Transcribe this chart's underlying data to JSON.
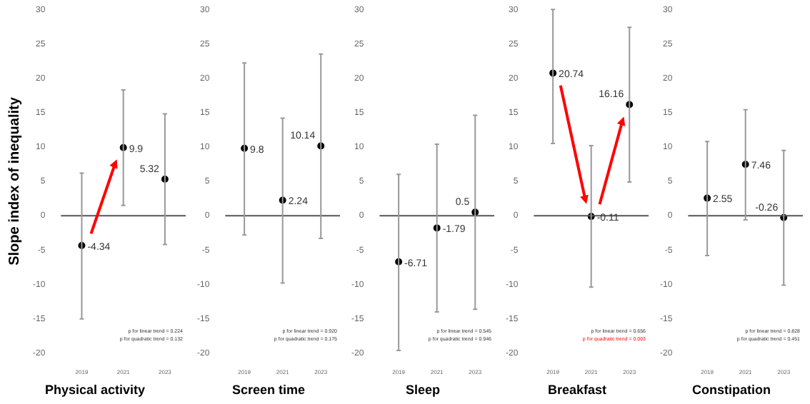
{
  "chart_data": [
    {
      "type": "scatter",
      "title": "Physical activity",
      "ylabel": "Slope index of inequality",
      "categories": [
        "2019",
        "2021",
        "2023"
      ],
      "values": [
        -4.34,
        9.9,
        5.32
      ],
      "errors": [
        [
          -15,
          6.2
        ],
        [
          1.5,
          18.3
        ],
        [
          -4.2,
          14.8
        ]
      ],
      "color": "#000000",
      "marker": "circle",
      "data_labels": true,
      "ylim": [
        -20,
        30
      ],
      "yticks": [
        -20,
        -15,
        -10,
        -5,
        0,
        5,
        10,
        15,
        20,
        25,
        30
      ],
      "grid": false,
      "ref_lines": [
        {
          "axis": "y",
          "value": 0
        }
      ],
      "annotations": [
        "p for linear trend = 0.224",
        "p for quadratic trend = 0.132"
      ]
    },
    {
      "type": "scatter",
      "title": "Screen time",
      "categories": [
        "2019",
        "2021",
        "2023"
      ],
      "values": [
        9.8,
        2.24,
        10.14
      ],
      "errors": [
        [
          -2.8,
          22.2
        ],
        [
          -9.8,
          14.2
        ],
        [
          -3.3,
          23.5
        ]
      ],
      "color": "#000000",
      "marker": "circle",
      "data_labels": true,
      "ylim": [
        -20,
        30
      ],
      "yticks": [
        -20,
        -15,
        -10,
        -5,
        0,
        5,
        10,
        15,
        20,
        25,
        30
      ],
      "grid": false,
      "ref_lines": [
        {
          "axis": "y",
          "value": 0
        }
      ],
      "annotations": [
        "p for linear trend = 0.920",
        "p for quadratic trend = 0.175"
      ]
    },
    {
      "type": "scatter",
      "title": "Sleep",
      "categories": [
        "2019",
        "2021",
        "2023"
      ],
      "values": [
        -6.71,
        -1.79,
        0.5
      ],
      "errors": [
        [
          -19.6,
          6
        ],
        [
          -14,
          10.4
        ],
        [
          -13.6,
          14.6
        ]
      ],
      "color": "#000000",
      "marker": "circle",
      "data_labels": true,
      "ylim": [
        -20,
        30
      ],
      "yticks": [
        -20,
        -15,
        -10,
        -5,
        0,
        5,
        10,
        15,
        20,
        25,
        30
      ],
      "grid": false,
      "ref_lines": [
        {
          "axis": "y",
          "value": 0
        }
      ],
      "annotations": [
        "p for linear trend = 0.545",
        "p for quadratic trend = 0.946"
      ]
    },
    {
      "type": "scatter",
      "title": "Breakfast",
      "categories": [
        "2019",
        "2021",
        "2023"
      ],
      "values": [
        20.74,
        -0.11,
        16.16
      ],
      "errors": [
        [
          10.5,
          30
        ],
        [
          -10.4,
          10.2
        ],
        [
          4.9,
          27.4
        ]
      ],
      "color": "#000000",
      "marker": "circle",
      "data_labels": true,
      "ylim": [
        -20,
        30
      ],
      "yticks": [
        -20,
        -15,
        -10,
        -5,
        0,
        5,
        10,
        15,
        20,
        25,
        30
      ],
      "grid": false,
      "ref_lines": [
        {
          "axis": "y",
          "value": 0
        }
      ],
      "annotations": [
        "p for linear trend = 0.656",
        "p for quadratic trend = 0.003"
      ]
    },
    {
      "type": "scatter",
      "title": "Constipation",
      "categories": [
        "2019",
        "2021",
        "2023"
      ],
      "values": [
        2.55,
        7.46,
        -0.26
      ],
      "errors": [
        [
          -5.8,
          10.8
        ],
        [
          -0.6,
          15.4
        ],
        [
          -10.1,
          9.5
        ]
      ],
      "color": "#000000",
      "marker": "circle",
      "data_labels": true,
      "ylim": [
        -20,
        30
      ],
      "yticks": [
        -20,
        -15,
        -10,
        -5,
        0,
        5,
        10,
        15,
        20,
        25,
        30
      ],
      "grid": false,
      "ref_lines": [
        {
          "axis": "y",
          "value": 0
        }
      ],
      "annotations": [
        "p for linear trend = 0.828",
        "p for quadratic trend = 0.451"
      ]
    }
  ]
}
